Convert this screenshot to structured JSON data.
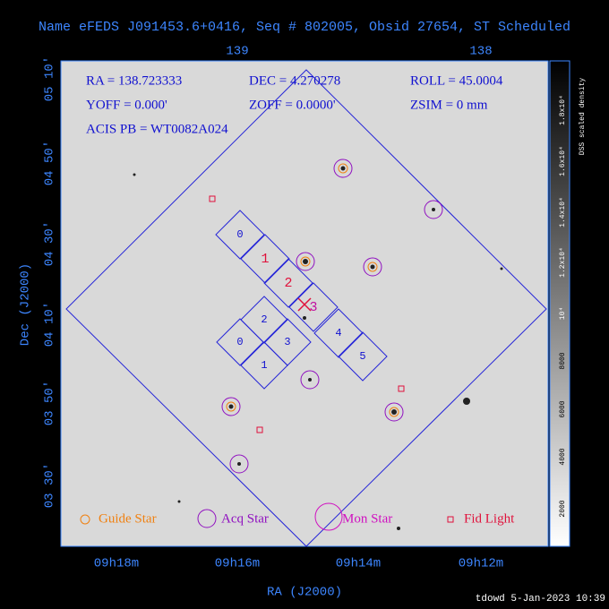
{
  "header": {
    "title": "Name eFEDS J091453.6+0416, Seq # 802005, Obsid 27654, ST Scheduled"
  },
  "axes": {
    "x_label": "RA (J2000)",
    "y_label": "Dec (J2000)",
    "x_ticks": [
      "09h18m",
      "09h16m",
      "09h14m",
      "09h12m"
    ],
    "top_ticks": [
      "139",
      "138"
    ],
    "y_ticks": [
      "05 10'",
      "04 50'",
      "04 30'",
      "04 10'",
      "03 50'",
      "03 30'"
    ]
  },
  "info": [
    "RA = 138.723333",
    "DEC = 4.270278",
    "ROLL = 45.0004",
    "YOFF =  0.000'",
    "ZOFF =  0.0000'",
    "ZSIM = 0 mm",
    "ACIS PB = WT0082A024"
  ],
  "chips": {
    "acis_s": [
      "0",
      "1",
      "2",
      "3",
      "4",
      "5"
    ],
    "acis_i": [
      "2",
      "0",
      "3",
      "1"
    ]
  },
  "legend": [
    "Guide Star",
    "Acq Star",
    "Mon Star",
    "Fid Light"
  ],
  "colorbar": {
    "label": "DSS scaled density",
    "ticks": [
      "2000",
      "4000",
      "6000",
      "8000",
      "10⁴",
      "1.2x10⁴",
      "1.4x10⁴",
      "1.6x10⁴",
      "1.8x10⁴"
    ]
  },
  "footer": "tdowd  5-Jan-2023 10:39"
}
